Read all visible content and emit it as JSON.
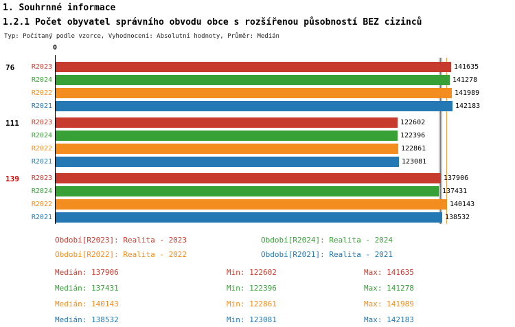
{
  "header": {
    "section_title": "1. Souhrnné informace"
  },
  "chart_data": {
    "type": "bar",
    "orientation": "horizontal",
    "title": "1.2.1 Počet obyvatel správního obvodu obce s rozšířenou působností BEZ cizinců",
    "subtitle": "Typ: Počítaný podle vzorce, Vyhodnocení: Absolutní hodnoty, Průměr: Medián",
    "x_axis": {
      "origin_label": "0",
      "min": 0,
      "max": 142183
    },
    "grid": false,
    "legend_position": "bottom",
    "groups": [
      {
        "label": "76",
        "label_color": "#000000"
      },
      {
        "label": "111",
        "label_color": "#000000"
      },
      {
        "label": "139",
        "label_color": "#dd0000"
      }
    ],
    "series": [
      {
        "name": "R2023",
        "color": "#c73a2e",
        "values": [
          141635,
          122602,
          137906
        ],
        "median": 137906,
        "min": 122602,
        "max": 141635,
        "legend": "Období[R2023]: Realita - 2023"
      },
      {
        "name": "R2024",
        "color": "#37a037",
        "values": [
          141278,
          122396,
          137431
        ],
        "median": 137431,
        "min": 122396,
        "max": 141278,
        "legend": "Období[R2024]: Realita - 2024"
      },
      {
        "name": "R2022",
        "color": "#f48d20",
        "values": [
          141989,
          122861,
          140143
        ],
        "median": 140143,
        "min": 122861,
        "max": 141989,
        "legend": "Období[R2022]: Realita - 2022"
      },
      {
        "name": "R2021",
        "color": "#2478b4",
        "values": [
          142183,
          123081,
          138532
        ],
        "median": 138532,
        "min": 123081,
        "max": 142183,
        "legend": "Období[R2021]: Realita - 2021"
      }
    ],
    "stat_labels": {
      "median": "Medián",
      "min": "Min",
      "max": "Max"
    }
  }
}
